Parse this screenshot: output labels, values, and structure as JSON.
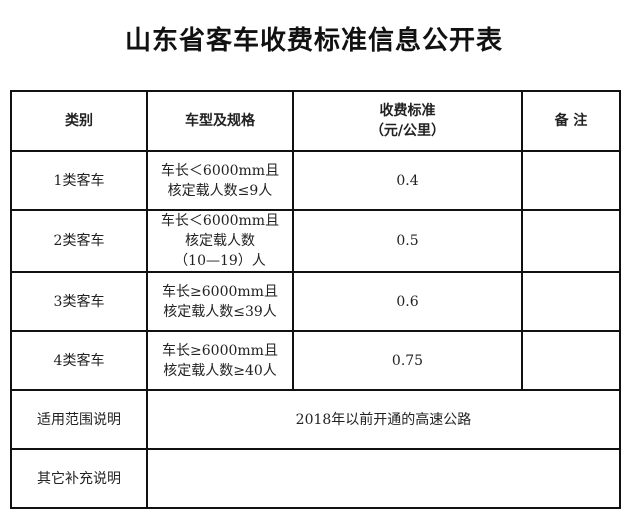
{
  "title": "山东省客车收费标准信息公开表",
  "headers": {
    "category": "类别",
    "spec": "车型及规格",
    "rate": "收费标准",
    "rate_unit": "（元/公里）",
    "note": "备 注"
  },
  "rows": [
    {
      "category": "1类客车",
      "spec_line1": "车长＜6000mm且",
      "spec_line2": "核定载人数≤9人",
      "spec_line3": "",
      "rate": "0.4",
      "note": ""
    },
    {
      "category": "2类客车",
      "spec_line1": "车长＜6000mm且",
      "spec_line2": "核定载人数",
      "spec_line3": "（10—19）人",
      "rate": "0.5",
      "note": ""
    },
    {
      "category": "3类客车",
      "spec_line1": "车长≥6000mm且",
      "spec_line2": "核定载人数≤39人",
      "spec_line3": "",
      "rate": "0.6",
      "note": ""
    },
    {
      "category": "4类客车",
      "spec_line1": "车长≥6000mm且",
      "spec_line2": "核定载人数≥40人",
      "spec_line3": "",
      "rate": "0.75",
      "note": ""
    }
  ],
  "scope": {
    "label": "适用范围说明",
    "value": "2018年以前开通的高速公路"
  },
  "other": {
    "label": "其它补充说明",
    "value": ""
  }
}
